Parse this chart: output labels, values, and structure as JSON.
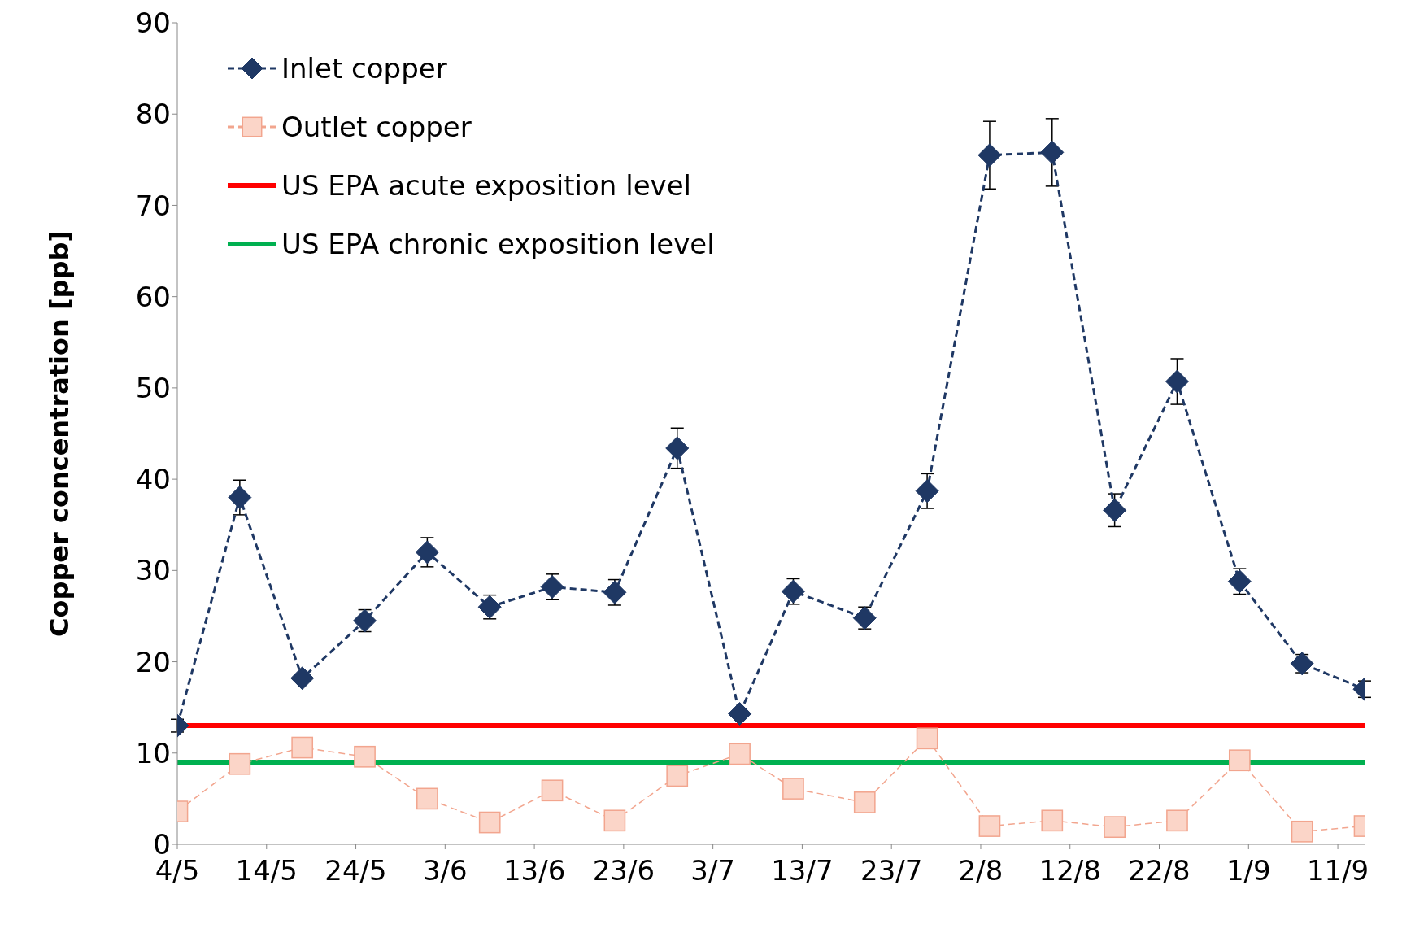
{
  "chart_data": {
    "type": "line",
    "ylabel": "Copper concentration [ppb]",
    "x": [
      "--05-04",
      "--05-11",
      "--05-18",
      "--05-25",
      "--06-01",
      "--06-08",
      "--06-15",
      "--06-22",
      "--06-29",
      "--07-06",
      "--07-12",
      "--07-20",
      "--07-27",
      "--08-03",
      "--08-10",
      "--08-17",
      "--08-24",
      "--08-31",
      "--09-07",
      "--09-14"
    ],
    "series": [
      {
        "name": "Inlet copper",
        "color": "#1f3864",
        "marker": "diamond",
        "line_style": "dashed",
        "values": [
          13.0,
          38.0,
          18.2,
          24.5,
          32.0,
          26.0,
          28.2,
          27.6,
          43.4,
          14.3,
          27.7,
          24.8,
          38.7,
          75.5,
          75.8,
          36.6,
          50.7,
          28.8,
          19.8,
          17.0
        ],
        "errors": [
          0.7,
          1.9,
          null,
          1.2,
          1.6,
          1.3,
          1.4,
          1.4,
          2.2,
          null,
          1.4,
          1.2,
          1.9,
          3.7,
          3.7,
          1.8,
          2.5,
          1.4,
          1.0,
          0.9
        ]
      },
      {
        "name": "Outlet copper",
        "color": "#f2a58e",
        "marker": "square",
        "line_style": "dashed",
        "values": [
          3.6,
          8.8,
          10.6,
          9.6,
          5.0,
          2.4,
          5.9,
          2.6,
          7.5,
          9.9,
          6.1,
          4.6,
          11.6,
          2.0,
          2.6,
          1.9,
          2.6,
          9.2,
          1.4,
          2.0
        ]
      }
    ],
    "ref_lines": [
      {
        "axis": "y",
        "value": 13,
        "label": "US EPA acute exposition level",
        "color": "#ff0000"
      },
      {
        "axis": "y",
        "value": 9,
        "label": "US EPA chronic exposition level",
        "color": "#00b050"
      }
    ],
    "xlim": [
      "--05-04",
      "--09-14"
    ],
    "xticks": [
      {
        "value": "--05-04",
        "label": "4/5"
      },
      {
        "value": "--05-14",
        "label": "14/5"
      },
      {
        "value": "--05-24",
        "label": "24/5"
      },
      {
        "value": "--06-03",
        "label": "3/6"
      },
      {
        "value": "--06-13",
        "label": "13/6"
      },
      {
        "value": "--06-23",
        "label": "23/6"
      },
      {
        "value": "--07-03",
        "label": "3/7"
      },
      {
        "value": "--07-13",
        "label": "13/7"
      },
      {
        "value": "--07-23",
        "label": "23/7"
      },
      {
        "value": "--08-02",
        "label": "2/8"
      },
      {
        "value": "--08-12",
        "label": "12/8"
      },
      {
        "value": "--08-22",
        "label": "22/8"
      },
      {
        "value": "--09-01",
        "label": "1/9"
      },
      {
        "value": "--09-11",
        "label": "11/9"
      }
    ],
    "ylim": [
      0,
      90
    ],
    "yticks": [
      0,
      10,
      20,
      30,
      40,
      50,
      60,
      70,
      80,
      90
    ],
    "grid": false,
    "legend": "top left"
  }
}
